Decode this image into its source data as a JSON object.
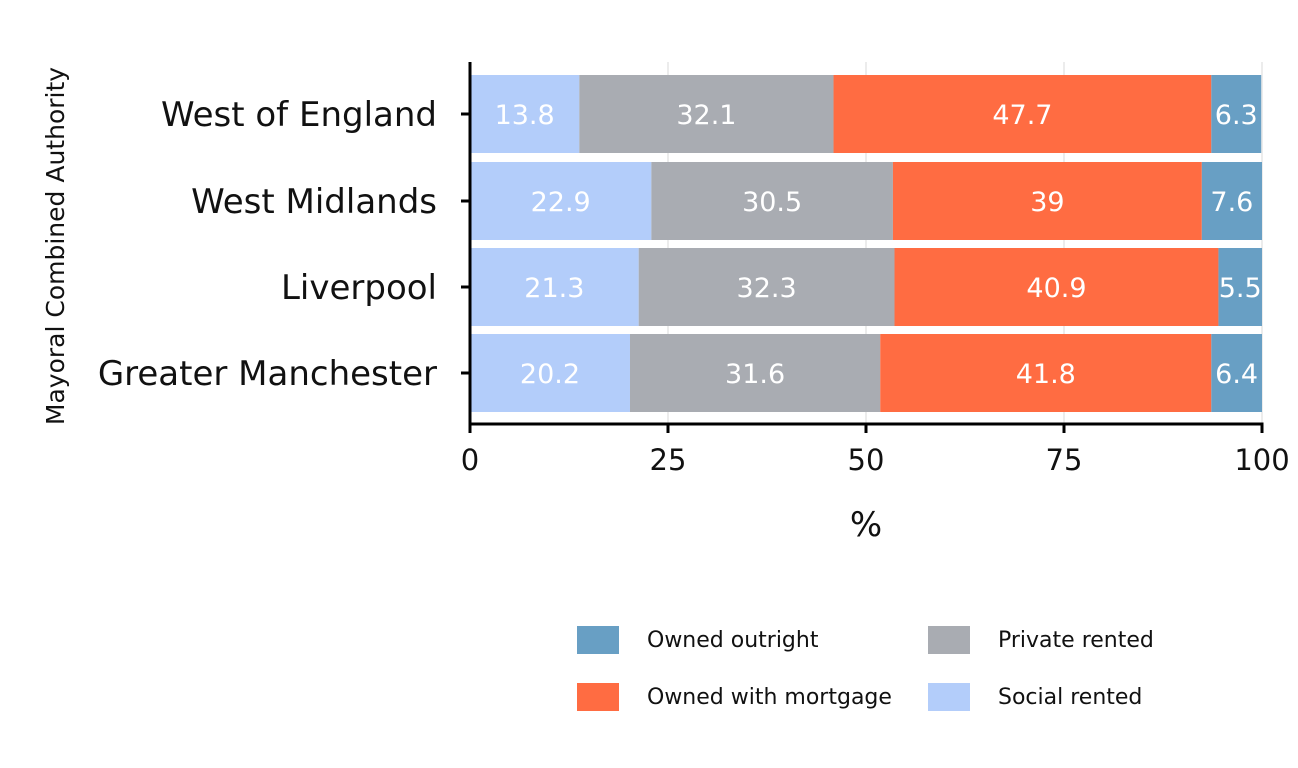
{
  "chart_data": {
    "type": "bar",
    "orientation": "horizontal",
    "stacked": true,
    "title": "",
    "xlabel": "%",
    "ylabel": "Mayoral Combined Authority",
    "xlim": [
      0,
      100
    ],
    "xticks": [
      0,
      25,
      50,
      75,
      100
    ],
    "grid": true,
    "legend_position": "bottom-right",
    "categories": [
      "West of England",
      "West Midlands",
      "Liverpool",
      "Greater Manchester"
    ],
    "series": [
      {
        "name": "Social rented",
        "color": "#b3cdfa",
        "values": [
          13.8,
          22.9,
          21.3,
          20.2
        ]
      },
      {
        "name": "Private rented",
        "color": "#a9acb2",
        "values": [
          32.1,
          30.5,
          32.3,
          31.6
        ]
      },
      {
        "name": "Owned with mortgage",
        "color": "#ff6c42",
        "values": [
          47.7,
          39,
          40.9,
          41.8
        ]
      },
      {
        "name": "Owned outright",
        "color": "#689fc4",
        "values": [
          6.3,
          7.6,
          5.5,
          6.4
        ]
      }
    ],
    "legend_order": [
      "Owned outright",
      "Private rented",
      "Owned with mortgage",
      "Social rented"
    ]
  }
}
